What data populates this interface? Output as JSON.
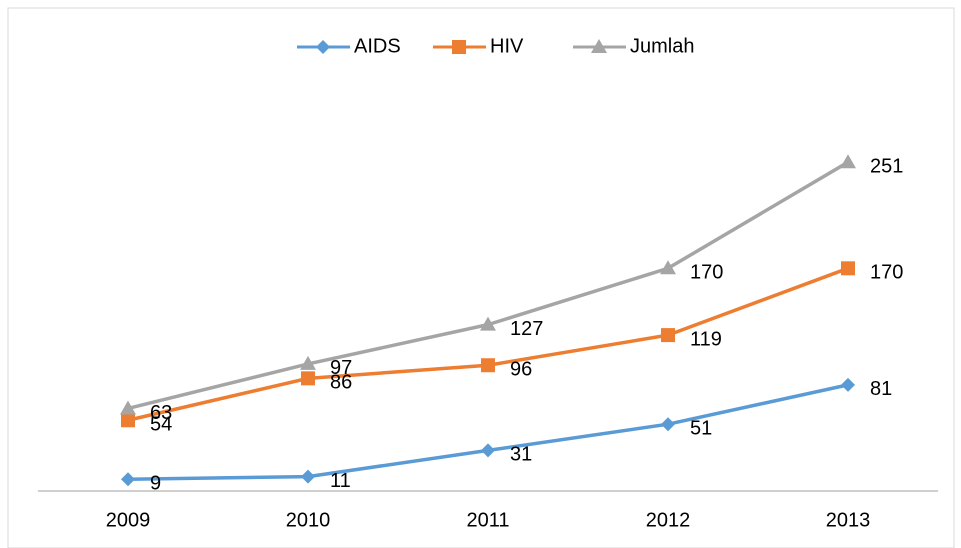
{
  "chart_data": {
    "type": "line",
    "categories": [
      "2009",
      "2010",
      "2011",
      "2012",
      "2013"
    ],
    "series": [
      {
        "name": "AIDS",
        "color": "#5b9bd5",
        "marker": "diamond",
        "values": [
          9,
          11,
          31,
          51,
          81
        ]
      },
      {
        "name": "HIV",
        "color": "#ed7d31",
        "marker": "square",
        "values": [
          54,
          86,
          96,
          119,
          170
        ]
      },
      {
        "name": "Jumlah",
        "color": "#a5a5a5",
        "marker": "triangle",
        "values": [
          63,
          97,
          127,
          170,
          251
        ]
      }
    ],
    "ylim": [
      0,
      300
    ],
    "legend": "top",
    "data_labels": true
  }
}
